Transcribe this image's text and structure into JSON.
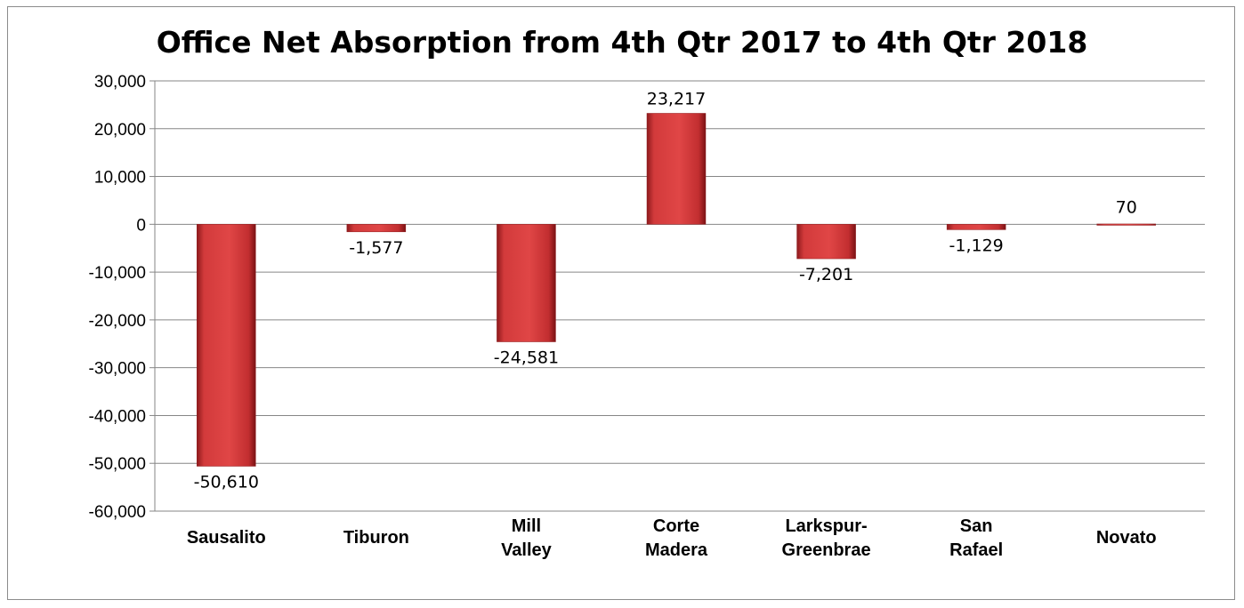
{
  "chart_data": {
    "type": "bar",
    "title": "Office Net Absorption from 4th Qtr 2017 to 4th Qtr 2018",
    "categories": [
      [
        "Sausalito"
      ],
      [
        "Tiburon"
      ],
      [
        "Mill",
        "Valley"
      ],
      [
        "Corte",
        "Madera"
      ],
      [
        "Larkspur-",
        "Greenbrae"
      ],
      [
        "San",
        "Rafael"
      ],
      [
        "Novato"
      ]
    ],
    "values": [
      -50610,
      -1577,
      -24581,
      23217,
      -7201,
      -1129,
      70
    ],
    "data_labels": [
      "-50,610",
      "-1,577",
      "-24,581",
      "23,217",
      "-7,201",
      "-1,129",
      "70"
    ],
    "ylim": [
      -60000,
      30000
    ],
    "yticks": [
      30000,
      20000,
      10000,
      0,
      -10000,
      -20000,
      -30000,
      -40000,
      -50000,
      -60000
    ],
    "ytick_labels": [
      "30,000",
      "20,000",
      "10,000",
      "0",
      "-10,000",
      "-20,000",
      "-30,000",
      "-40,000",
      "-50,000",
      "-60,000"
    ],
    "grid": true,
    "legend": "none",
    "colors": {
      "bar": "#c0282b",
      "bar_light": "#e34b4b",
      "bar_dark": "#8e1a1c",
      "grid": "#868686"
    }
  }
}
